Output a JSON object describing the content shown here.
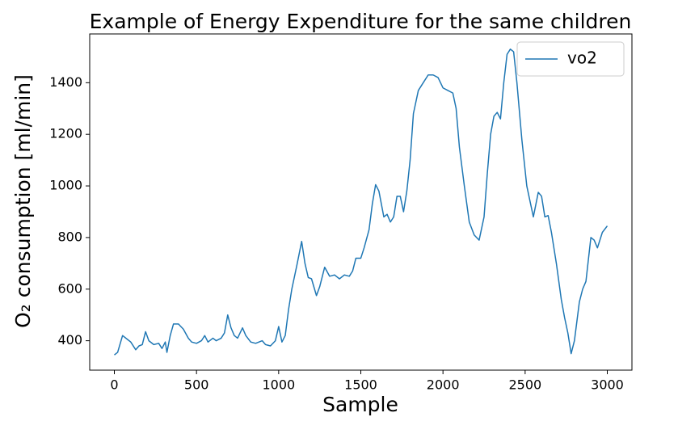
{
  "chart_data": {
    "type": "line",
    "title": "Example of Energy Expenditure for the same children",
    "xlabel": "Sample",
    "ylabel": "O₂ consumption [ml/min]",
    "x": [
      0,
      20,
      50,
      80,
      100,
      130,
      150,
      170,
      190,
      210,
      240,
      270,
      290,
      310,
      320,
      340,
      360,
      390,
      420,
      450,
      470,
      500,
      530,
      550,
      570,
      600,
      620,
      650,
      670,
      690,
      710,
      730,
      750,
      780,
      800,
      830,
      860,
      900,
      920,
      950,
      980,
      1000,
      1020,
      1040,
      1060,
      1080,
      1110,
      1140,
      1160,
      1180,
      1200,
      1230,
      1250,
      1280,
      1310,
      1340,
      1370,
      1400,
      1430,
      1450,
      1470,
      1500,
      1520,
      1550,
      1570,
      1590,
      1610,
      1640,
      1660,
      1680,
      1700,
      1720,
      1740,
      1760,
      1780,
      1800,
      1820,
      1850,
      1880,
      1910,
      1940,
      1970,
      2000,
      2030,
      2060,
      2080,
      2100,
      2130,
      2160,
      2190,
      2220,
      2250,
      2270,
      2290,
      2310,
      2330,
      2350,
      2370,
      2390,
      2410,
      2430,
      2450,
      2480,
      2510,
      2550,
      2580,
      2600,
      2620,
      2640,
      2660,
      2690,
      2720,
      2740,
      2760,
      2780,
      2800,
      2830,
      2850,
      2870,
      2900,
      2920,
      2940,
      2970,
      3000
    ],
    "series": [
      {
        "name": "vo2",
        "color": "#1f77b4",
        "values": [
          345,
          355,
          420,
          405,
          395,
          365,
          380,
          385,
          435,
          400,
          385,
          390,
          370,
          395,
          355,
          420,
          465,
          465,
          445,
          410,
          395,
          390,
          400,
          420,
          395,
          410,
          400,
          410,
          430,
          500,
          450,
          420,
          410,
          450,
          420,
          395,
          390,
          400,
          385,
          380,
          400,
          455,
          395,
          420,
          520,
          600,
          690,
          785,
          700,
          645,
          640,
          575,
          610,
          685,
          650,
          655,
          640,
          655,
          650,
          670,
          720,
          720,
          760,
          830,
          930,
          1005,
          980,
          880,
          890,
          860,
          880,
          960,
          960,
          900,
          980,
          1100,
          1280,
          1370,
          1400,
          1430,
          1430,
          1420,
          1380,
          1370,
          1360,
          1300,
          1150,
          1000,
          860,
          810,
          790,
          880,
          1050,
          1200,
          1270,
          1285,
          1260,
          1400,
          1510,
          1530,
          1520,
          1400,
          1180,
          1000,
          880,
          975,
          960,
          880,
          885,
          820,
          700,
          560,
          490,
          430,
          350,
          400,
          550,
          600,
          630,
          800,
          790,
          760,
          820,
          845
        ]
      }
    ],
    "xlim": [
      -150,
      3150
    ],
    "ylim": [
      286,
      1589
    ],
    "xticks": [
      0,
      500,
      1000,
      1500,
      2000,
      2500,
      3000
    ],
    "yticks": [
      400,
      600,
      800,
      1000,
      1200,
      1400
    ],
    "legend": "upper right",
    "grid": false
  }
}
